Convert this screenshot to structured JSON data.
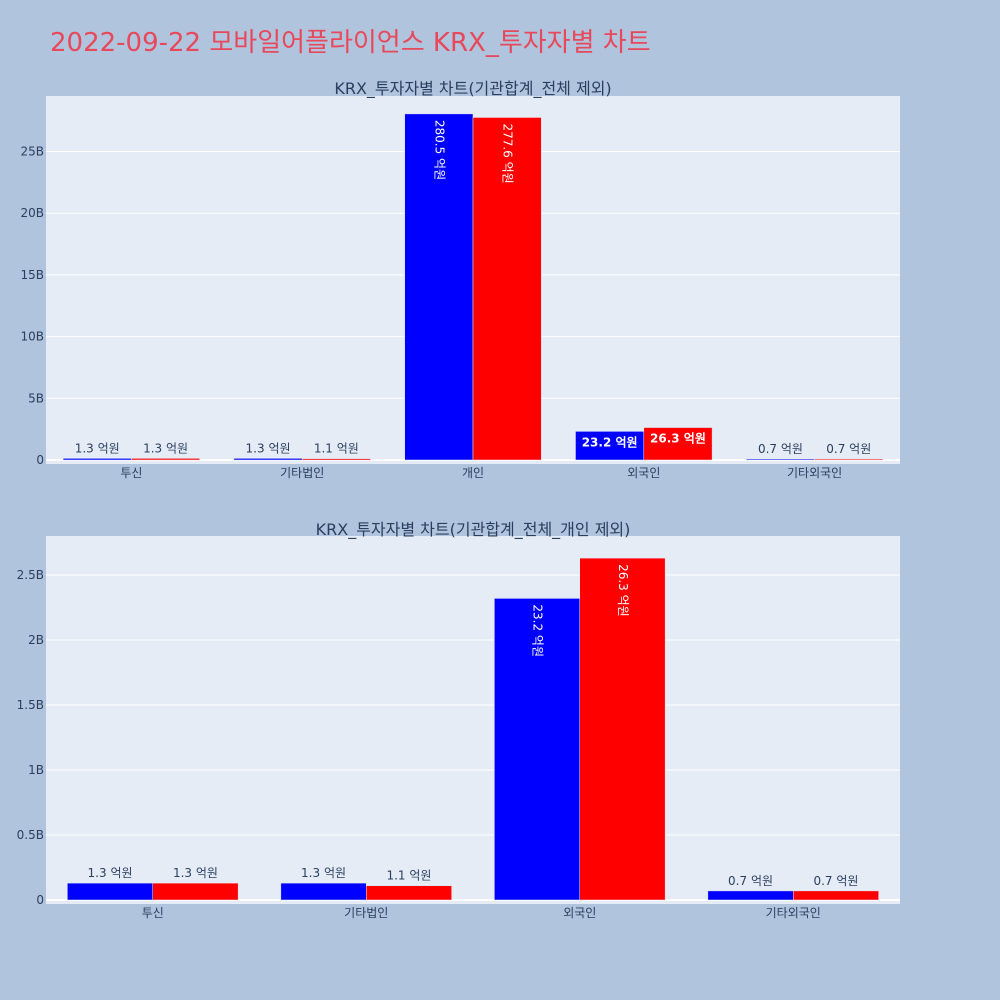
{
  "title": "2022-09-22 모바일어플라이언스 KRX_투자자별 차트",
  "colors": {
    "background": "#b0c4de",
    "plot_bg": "#e5ecf6",
    "title": "#e8485a",
    "text": "#2a3f5f",
    "series_a": "#0000ff",
    "series_b": "#ff0000"
  },
  "chart_data": [
    {
      "type": "bar",
      "title": "KRX_투자자별 차트(기관합계_전체 제외)",
      "categories": [
        "투신",
        "기타법인",
        "개인",
        "외국인",
        "기타외국인"
      ],
      "series": [
        {
          "color": "#0000ff",
          "values": [
            130000000,
            130000000,
            28050000000,
            2320000000,
            70000000
          ],
          "labels": [
            "1.3 억원",
            "1.3 억원",
            "280.5 억원",
            "23.2 억원",
            "0.7 억원"
          ]
        },
        {
          "color": "#ff0000",
          "values": [
            130000000,
            110000000,
            27760000000,
            2630000000,
            70000000
          ],
          "labels": [
            "1.3 억원",
            "1.1 억원",
            "277.6 억원",
            "26.3 억원",
            "0.7 억원"
          ]
        }
      ],
      "ylim": [
        0,
        29500000000
      ],
      "yticks": [
        0,
        5000000000,
        10000000000,
        15000000000,
        20000000000,
        25000000000
      ],
      "ytick_labels": [
        "0",
        "5B",
        "10B",
        "15B",
        "20B",
        "25B"
      ],
      "grid": true
    },
    {
      "type": "bar",
      "title": "KRX_투자자별 차트(기관합계_전체_개인 제외)",
      "categories": [
        "투신",
        "기타법인",
        "외국인",
        "기타외국인"
      ],
      "series": [
        {
          "color": "#0000ff",
          "values": [
            130000000,
            130000000,
            2320000000,
            70000000
          ],
          "labels": [
            "1.3 억원",
            "1.3 억원",
            "23.2 억원",
            "0.7 억원"
          ]
        },
        {
          "color": "#ff0000",
          "values": [
            130000000,
            110000000,
            2630000000,
            70000000
          ],
          "labels": [
            "1.3 억원",
            "1.1 억원",
            "26.3 억원",
            "0.7 억원"
          ]
        }
      ],
      "ylim": [
        0,
        2800000000
      ],
      "yticks": [
        0,
        500000000,
        1000000000,
        1500000000,
        2000000000,
        2500000000
      ],
      "ytick_labels": [
        "0",
        "0.5B",
        "1B",
        "1.5B",
        "2B",
        "2.5B"
      ],
      "grid": true
    }
  ]
}
